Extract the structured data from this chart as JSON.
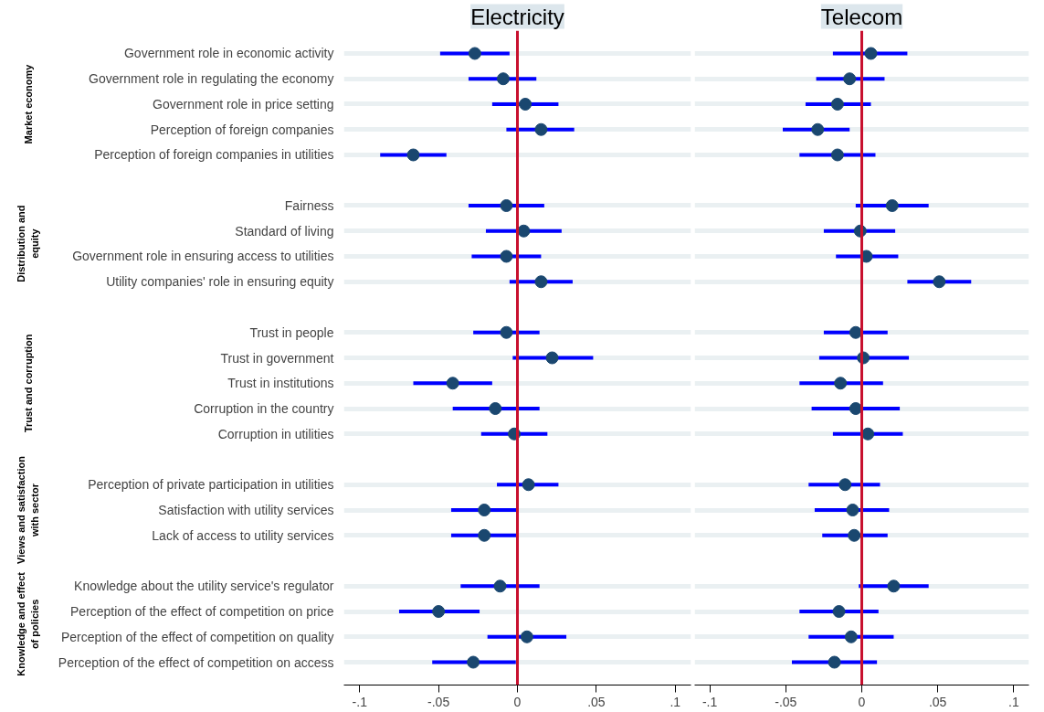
{
  "chart_data": [
    {
      "type": "scatter",
      "title": "Electricity",
      "orientation": "horizontal",
      "marker": "circle",
      "grid": "y",
      "tick_labels": "xy",
      "categories": [
        "Government role in economic activity",
        "Government role in regulating the economy",
        "Government role in price setting",
        "Perception of foreign companies",
        "Perception of foreign companies in utilities",
        null,
        "Fairness",
        "Standard of living",
        "Government role in ensuring access to utilities",
        "Utility companies' role in ensuring equity",
        null,
        "Trust in people",
        "Trust in government",
        "Trust in institutions",
        "Corruption in the country",
        "Corruption in utilities",
        null,
        "Perception of private participation in utilities",
        "Satisfaction with utility services",
        "Lack of access to utility services",
        null,
        "Knowledge about the utility service's regulator",
        "Perception of the effect of competition on price",
        "Perception of the effect of competition on quality",
        "Perception of the effect of competition on access"
      ],
      "series": [
        {
          "color": "#1a476f",
          "values": [
            -0.027,
            -0.009,
            0.005,
            0.015,
            -0.066,
            null,
            -0.007,
            0.004,
            -0.007,
            0.015,
            null,
            -0.007,
            0.022,
            -0.041,
            -0.014,
            -0.002,
            null,
            0.007,
            -0.021,
            -0.021,
            null,
            -0.011,
            -0.05,
            0.006,
            -0.028
          ],
          "errors": [
            [
              -0.049,
              -0.005
            ],
            [
              -0.031,
              0.012
            ],
            [
              -0.016,
              0.026
            ],
            [
              -0.007,
              0.036
            ],
            [
              -0.087,
              -0.045
            ],
            null,
            [
              -0.031,
              0.017
            ],
            [
              -0.02,
              0.028
            ],
            [
              -0.029,
              0.015
            ],
            [
              -0.005,
              0.035
            ],
            null,
            [
              -0.028,
              0.014
            ],
            [
              -0.003,
              0.048
            ],
            [
              -0.066,
              -0.016
            ],
            [
              -0.041,
              0.014
            ],
            [
              -0.023,
              0.019
            ],
            null,
            [
              -0.013,
              0.026
            ],
            [
              -0.042,
              0.0
            ],
            [
              -0.042,
              0.0
            ],
            null,
            [
              -0.036,
              0.014
            ],
            [
              -0.075,
              -0.024
            ],
            [
              -0.019,
              0.031
            ],
            [
              -0.054,
              -0.001
            ]
          ]
        }
      ],
      "xlim": [
        -0.11,
        0.11
      ],
      "xticks": [
        {
          "value": -0.1,
          "label": "-.1"
        },
        {
          "value": -0.05,
          "label": "-.05"
        },
        0,
        {
          "value": 0.05,
          "label": ".05"
        },
        {
          "value": 0.1,
          "label": ".1"
        }
      ],
      "ref_lines": [
        {
          "axis": "x",
          "value": 0,
          "color": "#c8102e"
        }
      ],
      "annotations": [
        "Market economy",
        "Distribution and equity",
        "Trust and corruption",
        "Views and satisfaction with sector",
        "Knowledge and effect of policies"
      ]
    },
    {
      "type": "scatter",
      "title": "Telecom",
      "orientation": "horizontal",
      "marker": "circle",
      "grid": "y",
      "tick_labels": "x",
      "categories": [
        "Government role in economic activity",
        "Government role in regulating the economy",
        "Government role in price setting",
        "Perception of foreign companies",
        "Perception of foreign companies in utilities",
        null,
        "Fairness",
        "Standard of living",
        "Government role in ensuring access to utilities",
        "Utility companies' role in ensuring equity",
        null,
        "Trust in people",
        "Trust in government",
        "Trust in institutions",
        "Corruption in the country",
        "Corruption in utilities",
        null,
        "Perception of private participation in utilities",
        "Satisfaction with utility services",
        "Lack of access to utility services",
        null,
        "Knowledge about the utility service's regulator",
        "Perception of the effect of competition on price",
        "Perception of the effect of competition on quality",
        "Perception of the effect of competition on access"
      ],
      "series": [
        {
          "color": "#1a476f",
          "values": [
            0.006,
            -0.008,
            -0.016,
            -0.029,
            -0.016,
            null,
            0.02,
            -0.001,
            0.003,
            0.051,
            null,
            -0.004,
            0.001,
            -0.014,
            -0.004,
            0.004,
            null,
            -0.011,
            -0.006,
            -0.005,
            null,
            0.021,
            -0.015,
            -0.007,
            -0.018
          ],
          "errors": [
            [
              -0.019,
              0.03
            ],
            [
              -0.03,
              0.015
            ],
            [
              -0.037,
              0.006
            ],
            [
              -0.052,
              -0.008
            ],
            [
              -0.041,
              0.009
            ],
            null,
            [
              -0.004,
              0.044
            ],
            [
              -0.025,
              0.022
            ],
            [
              -0.017,
              0.024
            ],
            [
              0.03,
              0.072
            ],
            null,
            [
              -0.025,
              0.017
            ],
            [
              -0.028,
              0.031
            ],
            [
              -0.041,
              0.014
            ],
            [
              -0.033,
              0.025
            ],
            [
              -0.019,
              0.027
            ],
            null,
            [
              -0.035,
              0.012
            ],
            [
              -0.031,
              0.018
            ],
            [
              -0.026,
              0.017
            ],
            null,
            [
              -0.002,
              0.044
            ],
            [
              -0.041,
              0.011
            ],
            [
              -0.035,
              0.021
            ],
            [
              -0.046,
              0.01
            ]
          ]
        }
      ],
      "xlim": [
        -0.11,
        0.11
      ],
      "xticks": [
        {
          "value": -0.1,
          "label": "-.1"
        },
        {
          "value": -0.05,
          "label": "-.05"
        },
        0,
        {
          "value": 0.05,
          "label": ".05"
        },
        {
          "value": 0.1,
          "label": ".1"
        }
      ],
      "ref_lines": [
        {
          "axis": "x",
          "value": 0,
          "color": "#c8102e"
        }
      ]
    }
  ]
}
